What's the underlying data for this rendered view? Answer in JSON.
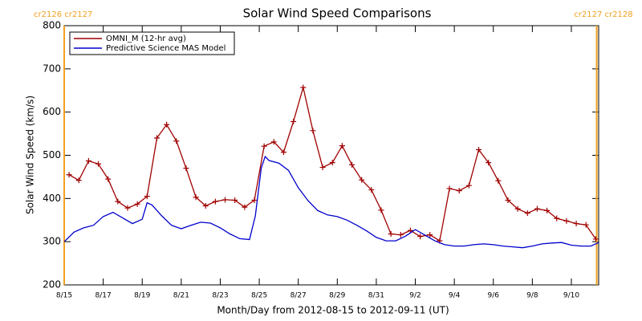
{
  "chart_data": {
    "type": "line",
    "title": "Solar Wind Speed Comparisons",
    "xlabel": "Month/Day from 2012-08-15 to 2012-09-11 (UT)",
    "ylabel": "Solar Wind Speed (km/s)",
    "xlim": [
      0,
      27.4
    ],
    "ylim": [
      200,
      800
    ],
    "xticks": [
      {
        "value": 0,
        "label": "8/15"
      },
      {
        "value": 2,
        "label": "8/17"
      },
      {
        "value": 4,
        "label": "8/19"
      },
      {
        "value": 6,
        "label": "8/21"
      },
      {
        "value": 8,
        "label": "8/23"
      },
      {
        "value": 10,
        "label": "8/25"
      },
      {
        "value": 12,
        "label": "8/27"
      },
      {
        "value": 14,
        "label": "8/29"
      },
      {
        "value": 16,
        "label": "8/31"
      },
      {
        "value": 18,
        "label": "9/2"
      },
      {
        "value": 20,
        "label": "9/4"
      },
      {
        "value": 22,
        "label": "9/6"
      },
      {
        "value": 24,
        "label": "9/8"
      },
      {
        "value": 26,
        "label": "9/10"
      }
    ],
    "yticks": [
      200,
      300,
      400,
      500,
      600,
      700,
      800
    ],
    "legend": "upper left",
    "boundaries": {
      "color": "#f0a020",
      "items": [
        {
          "x": 0,
          "label": "cr2126 cr2127"
        },
        {
          "x": 27.3,
          "label": "cr2127 cr2128"
        }
      ]
    },
    "series": [
      {
        "name": "OMNI_M (12-hr avg)",
        "color": "#a00000",
        "markers": true,
        "x": [
          0.25,
          0.75,
          1.25,
          1.75,
          2.25,
          2.75,
          3.25,
          3.75,
          4.25,
          4.75,
          5.25,
          5.75,
          6.25,
          6.75,
          7.25,
          7.75,
          8.25,
          8.75,
          9.25,
          9.75,
          10.25,
          10.75,
          11.25,
          11.75,
          12.25,
          12.75,
          13.25,
          13.75,
          14.25,
          14.75,
          15.25,
          15.75,
          16.25,
          16.75,
          17.25,
          17.75,
          18.25,
          18.75,
          19.25,
          19.75,
          20.25,
          20.75,
          21.25,
          21.75,
          22.25,
          22.75,
          23.25,
          23.75,
          24.25,
          24.75,
          25.25,
          25.75,
          26.25,
          26.75,
          27.25
        ],
        "values": [
          455,
          442,
          487,
          480,
          445,
          393,
          378,
          387,
          405,
          540,
          571,
          533,
          470,
          403,
          383,
          393,
          397,
          396,
          380,
          396,
          521,
          531,
          507,
          578,
          657,
          557,
          472,
          483,
          522,
          478,
          443,
          420,
          373,
          318,
          316,
          326,
          312,
          316,
          302,
          423,
          418,
          430,
          513,
          483,
          441,
          396,
          376,
          366,
          376,
          372,
          354,
          348,
          342,
          339,
          306
        ]
      },
      {
        "name": "Predictive Science MAS Model",
        "color": "#0000cc",
        "markers": false,
        "x": [
          0,
          0.5,
          1,
          1.5,
          2,
          2.5,
          3,
          3.5,
          4,
          4.25,
          4.5,
          5,
          5.5,
          6,
          6.5,
          7,
          7.5,
          8,
          8.5,
          9,
          9.5,
          9.8,
          10.1,
          10.3,
          10.5,
          11,
          11.5,
          12,
          12.5,
          13,
          13.5,
          14,
          14.5,
          15,
          15.5,
          16,
          16.5,
          17,
          17.5,
          18,
          18.5,
          19,
          19.5,
          20,
          20.5,
          21,
          21.5,
          22,
          22.5,
          23,
          23.5,
          24,
          24.5,
          25,
          25.5,
          26,
          26.5,
          27,
          27.4
        ],
        "values": [
          300,
          322,
          332,
          338,
          358,
          368,
          355,
          342,
          352,
          390,
          385,
          360,
          338,
          330,
          338,
          345,
          343,
          332,
          318,
          307,
          305,
          360,
          470,
          497,
          488,
          482,
          465,
          425,
          395,
          372,
          362,
          358,
          350,
          338,
          325,
          310,
          302,
          302,
          313,
          328,
          315,
          302,
          293,
          290,
          290,
          293,
          295,
          293,
          290,
          288,
          286,
          290,
          295,
          297,
          298,
          292,
          290,
          290,
          298
        ]
      }
    ]
  }
}
